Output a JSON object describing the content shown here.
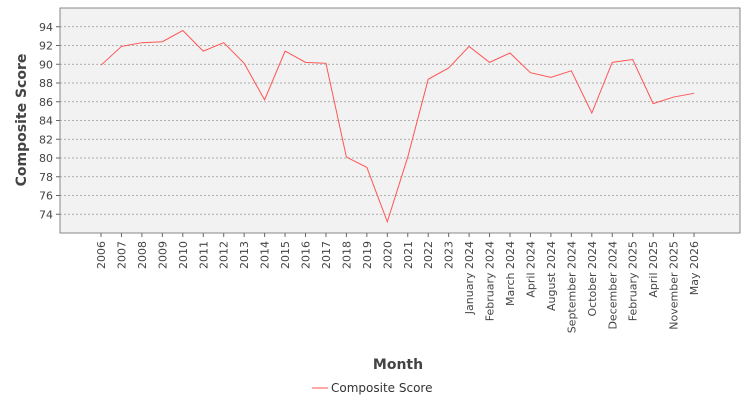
{
  "chart_data": {
    "type": "line",
    "title": "",
    "xlabel": "Month",
    "ylabel": "Composite Score",
    "ylim": [
      72,
      96
    ],
    "y_ticks": [
      74,
      76,
      78,
      80,
      82,
      84,
      86,
      88,
      90,
      92,
      94
    ],
    "grid": true,
    "legend_position": "bottom-center",
    "categories": [
      "2006",
      "2007",
      "2008",
      "2009",
      "2010",
      "2011",
      "2012",
      "2013",
      "2014",
      "2015",
      "2016",
      "2017",
      "2018",
      "2019",
      "2020",
      "2021",
      "2022",
      "2023",
      "January 2024",
      "February 2024",
      "March 2024",
      "April 2024",
      "August 2024",
      "September 2024",
      "October 2024",
      "December 2024",
      "February 2025",
      "April 2025",
      "November 2025",
      "May 2026"
    ],
    "series": [
      {
        "name": "Composite Score",
        "color": "#ff5555",
        "values": [
          89.9,
          91.9,
          92.3,
          92.4,
          93.6,
          91.4,
          92.3,
          90.1,
          86.2,
          91.4,
          90.2,
          90.1,
          80.1,
          79.0,
          73.2,
          80.1,
          88.4,
          89.6,
          91.9,
          90.2,
          91.2,
          89.1,
          88.6,
          89.3,
          84.8,
          90.2,
          90.5,
          85.8,
          86.5,
          86.9
        ]
      }
    ]
  }
}
